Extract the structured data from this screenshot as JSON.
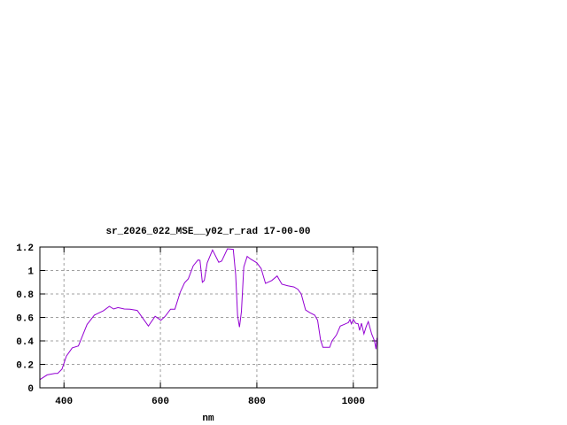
{
  "chart_data": {
    "type": "line",
    "title": "sr_2026_022_MSE__y02_r_rad 17-00-00",
    "xlabel": "nm",
    "ylabel": "",
    "xlim": [
      350,
      1050
    ],
    "ylim": [
      0,
      1.2
    ],
    "xticks": [
      400,
      600,
      800,
      1000
    ],
    "yticks": [
      0,
      0.2,
      0.4,
      0.6,
      0.8,
      1,
      1.2
    ],
    "ytick_labels": [
      "0",
      "0.2",
      "0.4",
      "0.6",
      "0.8",
      "1",
      "1.2"
    ],
    "grid": true,
    "line_color": "#9400d3",
    "x": [
      350,
      352,
      365,
      381,
      387,
      396,
      405,
      417,
      430,
      448,
      463,
      482,
      494,
      503,
      512,
      525,
      537,
      552,
      564,
      575,
      589,
      601,
      610,
      621,
      630,
      641,
      650,
      658,
      668,
      678,
      682,
      687,
      691,
      697,
      708,
      721,
      727,
      739,
      751,
      756,
      760,
      764,
      768,
      773,
      780,
      787,
      800,
      809,
      818,
      831,
      842,
      852,
      864,
      877,
      885,
      892,
      901,
      910,
      920,
      926,
      932,
      937,
      951,
      956,
      965,
      973,
      981,
      990,
      993,
      996,
      1000,
      1005,
      1010,
      1013,
      1017,
      1022,
      1027,
      1031,
      1038,
      1044,
      1047,
      1049
    ],
    "y": [
      0.07,
      0.075,
      0.11,
      0.123,
      0.123,
      0.16,
      0.27,
      0.34,
      0.357,
      0.54,
      0.62,
      0.657,
      0.694,
      0.672,
      0.684,
      0.672,
      0.67,
      0.66,
      0.59,
      0.526,
      0.61,
      0.576,
      0.61,
      0.67,
      0.67,
      0.815,
      0.895,
      0.93,
      1.04,
      1.09,
      1.087,
      0.9,
      0.915,
      1.066,
      1.175,
      1.07,
      1.08,
      1.185,
      1.18,
      0.966,
      0.614,
      0.518,
      0.65,
      1.03,
      1.12,
      1.097,
      1.066,
      1.016,
      0.89,
      0.915,
      0.953,
      0.883,
      0.87,
      0.86,
      0.84,
      0.8,
      0.664,
      0.64,
      0.62,
      0.576,
      0.41,
      0.345,
      0.345,
      0.4,
      0.45,
      0.526,
      0.54,
      0.556,
      0.583,
      0.546,
      0.583,
      0.55,
      0.546,
      0.49,
      0.55,
      0.46,
      0.526,
      0.564,
      0.46,
      0.4,
      0.33,
      0.425
    ]
  }
}
